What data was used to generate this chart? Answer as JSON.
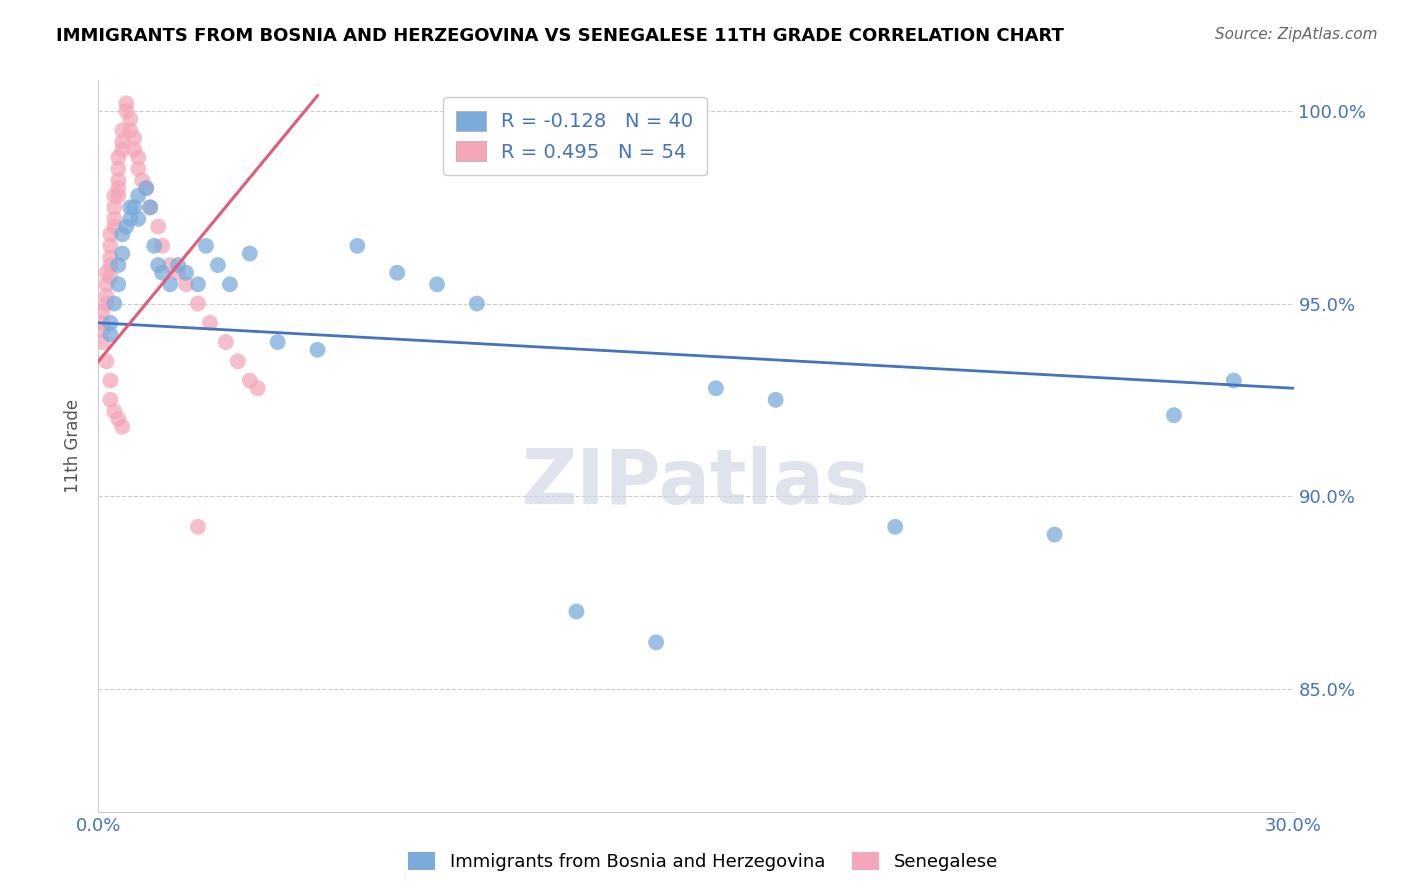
{
  "title": "IMMIGRANTS FROM BOSNIA AND HERZEGOVINA VS SENEGALESE 11TH GRADE CORRELATION CHART",
  "source": "Source: ZipAtlas.com",
  "ylabel": "11th Grade",
  "xlim": [
    0.0,
    0.3
  ],
  "ylim": [
    0.818,
    1.008
  ],
  "xtick_positions": [
    0.0,
    0.05,
    0.1,
    0.15,
    0.2,
    0.25,
    0.3
  ],
  "xtick_labels": [
    "0.0%",
    "",
    "",
    "",
    "",
    "",
    "30.0%"
  ],
  "ytick_positions": [
    0.85,
    0.9,
    0.95,
    1.0
  ],
  "ytick_labels": [
    "85.0%",
    "90.0%",
    "95.0%",
    "100.0%"
  ],
  "grid_color": "#cccccc",
  "background_color": "#ffffff",
  "blue_R": -0.128,
  "blue_N": 40,
  "pink_R": 0.495,
  "pink_N": 54,
  "blue_color": "#7aabdb",
  "pink_color": "#f4a7b9",
  "blue_line_color": "#4472c4",
  "pink_line_color": "#e05c7a",
  "legend_label_blue": "Immigrants from Bosnia and Herzegovina",
  "legend_label_pink": "Senegalese",
  "watermark": "ZIPatlas",
  "blue_x": [
    0.003,
    0.003,
    0.004,
    0.005,
    0.005,
    0.006,
    0.006,
    0.007,
    0.008,
    0.008,
    0.009,
    0.01,
    0.01,
    0.012,
    0.013,
    0.014,
    0.015,
    0.016,
    0.018,
    0.02,
    0.022,
    0.025,
    0.027,
    0.03,
    0.033,
    0.038,
    0.045,
    0.055,
    0.065,
    0.075,
    0.085,
    0.095,
    0.12,
    0.14,
    0.155,
    0.17,
    0.2,
    0.24,
    0.27,
    0.285
  ],
  "blue_y": [
    0.945,
    0.942,
    0.95,
    0.96,
    0.955,
    0.968,
    0.963,
    0.97,
    0.975,
    0.972,
    0.975,
    0.978,
    0.972,
    0.98,
    0.975,
    0.965,
    0.96,
    0.958,
    0.955,
    0.96,
    0.958,
    0.955,
    0.965,
    0.96,
    0.955,
    0.963,
    0.94,
    0.938,
    0.965,
    0.958,
    0.955,
    0.95,
    0.87,
    0.862,
    0.928,
    0.925,
    0.892,
    0.89,
    0.921,
    0.93
  ],
  "pink_x": [
    0.001,
    0.001,
    0.001,
    0.002,
    0.002,
    0.002,
    0.002,
    0.003,
    0.003,
    0.003,
    0.003,
    0.003,
    0.004,
    0.004,
    0.004,
    0.004,
    0.005,
    0.005,
    0.005,
    0.005,
    0.005,
    0.006,
    0.006,
    0.006,
    0.007,
    0.007,
    0.008,
    0.008,
    0.009,
    0.009,
    0.01,
    0.01,
    0.011,
    0.012,
    0.013,
    0.015,
    0.016,
    0.018,
    0.02,
    0.022,
    0.025,
    0.028,
    0.032,
    0.035,
    0.038,
    0.04,
    0.001,
    0.002,
    0.003,
    0.003,
    0.004,
    0.005,
    0.006,
    0.025
  ],
  "pink_y": [
    0.948,
    0.945,
    0.943,
    0.958,
    0.955,
    0.952,
    0.95,
    0.968,
    0.965,
    0.962,
    0.96,
    0.957,
    0.978,
    0.975,
    0.972,
    0.97,
    0.988,
    0.985,
    0.982,
    0.98,
    0.978,
    0.995,
    0.992,
    0.99,
    1.002,
    1.0,
    0.998,
    0.995,
    0.993,
    0.99,
    0.988,
    0.985,
    0.982,
    0.98,
    0.975,
    0.97,
    0.965,
    0.96,
    0.958,
    0.955,
    0.95,
    0.945,
    0.94,
    0.935,
    0.93,
    0.928,
    0.94,
    0.935,
    0.93,
    0.925,
    0.922,
    0.92,
    0.918,
    0.892
  ],
  "blue_line_x": [
    0.0,
    0.3
  ],
  "blue_line_y": [
    0.945,
    0.928
  ],
  "pink_line_x": [
    0.0,
    0.055
  ],
  "pink_line_y": [
    0.935,
    1.004
  ]
}
